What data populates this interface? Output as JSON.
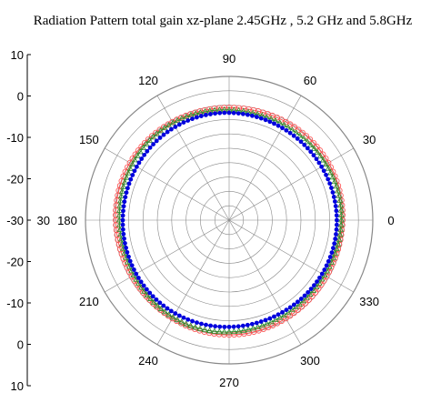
{
  "chart_data": {
    "type": "polar-line",
    "title": "Radiation Pattern total gain xz-plane 2.45GHz , 5.2 GHz and 5.8GHz",
    "r_axis": {
      "label_side": "left",
      "min_db": -30,
      "max_db": 10,
      "ticks_db": [
        10,
        0,
        -10,
        -20,
        -30,
        -20,
        -10,
        0,
        10
      ],
      "tick_labels": [
        "10",
        "0",
        "-10",
        "-20",
        "-30",
        "-20",
        "-10",
        "0",
        "10"
      ],
      "center_label": "30"
    },
    "angle_axis": {
      "ticks_deg": [
        0,
        30,
        60,
        90,
        120,
        150,
        180,
        210,
        240,
        270,
        300,
        330
      ],
      "tick_labels": [
        "0",
        "30",
        "60",
        "90",
        "120",
        "150",
        "180",
        "210",
        "240",
        "270",
        "300",
        "330"
      ],
      "rings": 10
    },
    "series": [
      {
        "color": "#ff4d4d",
        "marker": "circle-open",
        "gain_db": 1.6,
        "ripple_db": 0.3
      },
      {
        "color": "#2e8b2e",
        "marker": "triangle-open",
        "gain_db": 0.9,
        "ripple_db": 0.4
      },
      {
        "color": "#0000dd",
        "marker": "dot-filled",
        "gain_db": -0.2,
        "ripple_db": 0.2
      }
    ]
  }
}
